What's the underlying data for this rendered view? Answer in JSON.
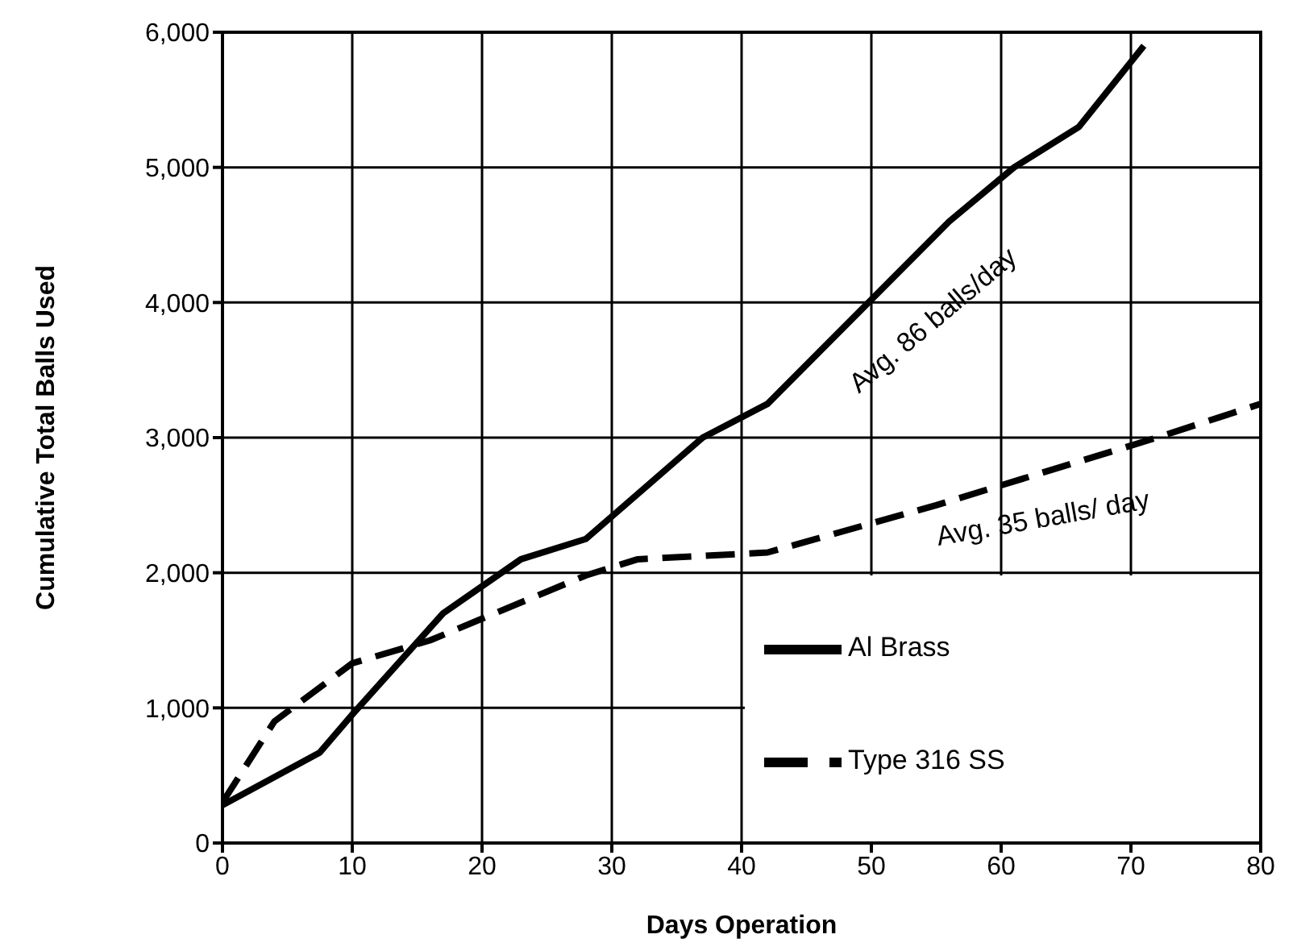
{
  "chart_data": {
    "type": "line",
    "xlabel": "Days Operation",
    "ylabel": "Cumulative Total Balls Used",
    "xlim": [
      0,
      80
    ],
    "xticks": [
      0,
      10,
      20,
      30,
      40,
      50,
      60,
      70,
      80
    ],
    "ylim": [
      0,
      6000
    ],
    "yticks": [
      {
        "value": 0,
        "label": "0"
      },
      {
        "value": 1000,
        "label": "1,000"
      },
      {
        "value": 2000,
        "label": "2,000"
      },
      {
        "value": 3000,
        "label": "3,000"
      },
      {
        "value": 4000,
        "label": "4,000"
      },
      {
        "value": 5000,
        "label": "5,000"
      },
      {
        "value": 6000,
        "label": "6,000"
      }
    ],
    "grid": true,
    "legend": "bottom right",
    "marker": "none",
    "series": [
      {
        "name": "Al Brass",
        "color": "#000000",
        "line_style": "solid",
        "x": [
          0,
          7.5,
          10,
          17,
          23,
          28,
          37,
          42,
          56,
          61,
          66,
          71
        ],
        "values": [
          280,
          670,
          950,
          1700,
          2100,
          2250,
          3000,
          3250,
          4600,
          5000,
          5300,
          5900
        ]
      },
      {
        "name": "Type 316 SS",
        "color": "#000000",
        "line_style": "dashed",
        "x": [
          0,
          4,
          10,
          16,
          28,
          32,
          42,
          55,
          72,
          80
        ],
        "values": [
          300,
          900,
          1330,
          1500,
          1980,
          2100,
          2150,
          2500,
          3000,
          3250
        ]
      }
    ],
    "annotations": [
      "Avg. 86 balls/day",
      "Avg. 35 balls/ day"
    ]
  }
}
